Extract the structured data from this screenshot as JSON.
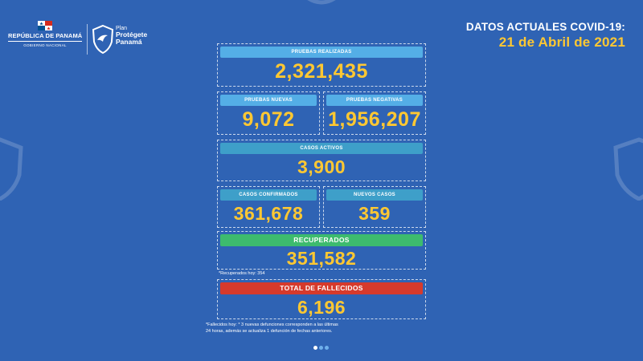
{
  "header": {
    "government_name": "REPÚBLICA DE PANAMÁ",
    "government_sub": "GOBIERNO NACIONAL",
    "plan_line1": "Plan",
    "plan_line2": "Protégete",
    "plan_line3": "Panamá",
    "title": "DATOS ACTUALES COVID-19:",
    "date": "21 de Abril de 2021"
  },
  "stats": {
    "pruebas_realizadas": {
      "label": "PRUEBAS REALIZADAS",
      "value": "2,321,435"
    },
    "pruebas_nuevas": {
      "label": "PRUEBAS NUEVAS",
      "value": "9,072"
    },
    "pruebas_negativas": {
      "label": "PRUEBAS NEGATIVAS",
      "value": "1,956,207"
    },
    "casos_activos": {
      "label": "CASOS ACTIVOS",
      "value": "3,900"
    },
    "casos_confirmados": {
      "label": "CASOS CONFIRMADOS",
      "value": "361,678"
    },
    "nuevos_casos": {
      "label": "NUEVOS CASOS",
      "value": "359"
    },
    "recuperados": {
      "label": "RECUPERADOS",
      "value": "351,582",
      "note": "*Recuperados hoy: 354"
    },
    "fallecidos": {
      "label": "TOTAL DE FALLECIDOS",
      "value": "6,196",
      "note_line1": "*Fallecidos hoy: * 3 nuevas defunciones corresponden a las últimas",
      "note_line2": "24 horas, además se actualiza 1 defunción de fechas anteriores."
    }
  },
  "colors": {
    "background": "#2f63b4",
    "value_yellow": "#ffc832",
    "bar_light_blue": "#54aee6",
    "bar_teal": "#3e9fc9",
    "bar_green": "#3dbb6e",
    "bar_red": "#d63a2c"
  },
  "icons": {
    "flag": "panama-flag-icon",
    "logo": "shield-logo-icon",
    "background": "shield-icon"
  },
  "pagination": {
    "pages": 3,
    "active": 1
  }
}
